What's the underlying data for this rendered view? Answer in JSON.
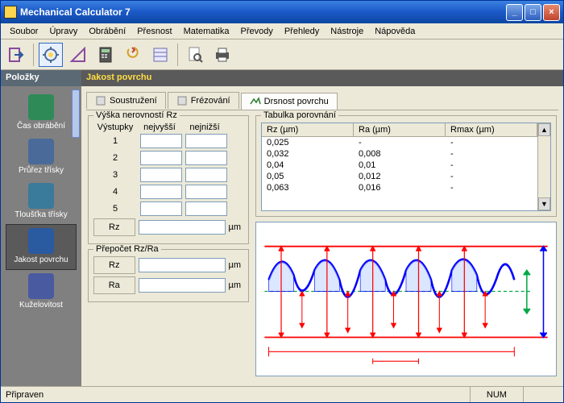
{
  "window": {
    "title": "Mechanical Calculator 7"
  },
  "menu": [
    "Soubor",
    "Úpravy",
    "Obrábění",
    "Přesnost",
    "Matematika",
    "Převody",
    "Přehledy",
    "Nástroje",
    "Nápověda"
  ],
  "toolbar_icons": [
    "exit",
    "gear",
    "triangle",
    "calc",
    "convert",
    "sheet",
    "preview",
    "print"
  ],
  "header": {
    "left": "Položky",
    "right": "Jakost povrchu"
  },
  "sidebar": [
    {
      "label": "Čas obrábění",
      "color": "#2e8b57",
      "active": false
    },
    {
      "label": "Průřez třísky",
      "color": "#4a6a9a",
      "active": false
    },
    {
      "label": "Tloušťka třísky",
      "color": "#3a7a9a",
      "active": false
    },
    {
      "label": "Jakost povrchu",
      "color": "#2a5aa0",
      "active": true
    },
    {
      "label": "Kuželovitost",
      "color": "#4a5aa0",
      "active": false
    }
  ],
  "tabs": [
    {
      "label": "Soustružení",
      "active": false
    },
    {
      "label": "Frézování",
      "active": false
    },
    {
      "label": "Drsnost povrchu",
      "active": true
    }
  ],
  "group1": {
    "legend": "Výška nerovností Rz",
    "col_vystupky": "Výstupky",
    "col_high": "nejvyšší",
    "col_low": "nejnižší",
    "rows": [
      "1",
      "2",
      "3",
      "4",
      "5"
    ],
    "rz_btn": "Rz",
    "unit": "µm"
  },
  "group2": {
    "legend": "Přepočet Rz/Ra",
    "rz_btn": "Rz",
    "ra_btn": "Ra",
    "unit": "µm"
  },
  "table": {
    "legend": "Tabulka porovnání",
    "cols": [
      "Rz (µm)",
      "Ra (µm)",
      "Rmax (µm)"
    ],
    "rows": [
      [
        "0,025",
        "-",
        "-"
      ],
      [
        "0,032",
        "0,008",
        "-"
      ],
      [
        "0,04",
        "0,01",
        "-"
      ],
      [
        "0,05",
        "0,012",
        "-"
      ],
      [
        "0,063",
        "0,016",
        "-"
      ]
    ]
  },
  "diagram": {
    "wave_color": "#0000ff",
    "dim_color": "#ff0000",
    "center_color": "#00aa44",
    "bg": "#ffffff"
  },
  "status": {
    "ready": "Připraven",
    "num": "NUM"
  }
}
